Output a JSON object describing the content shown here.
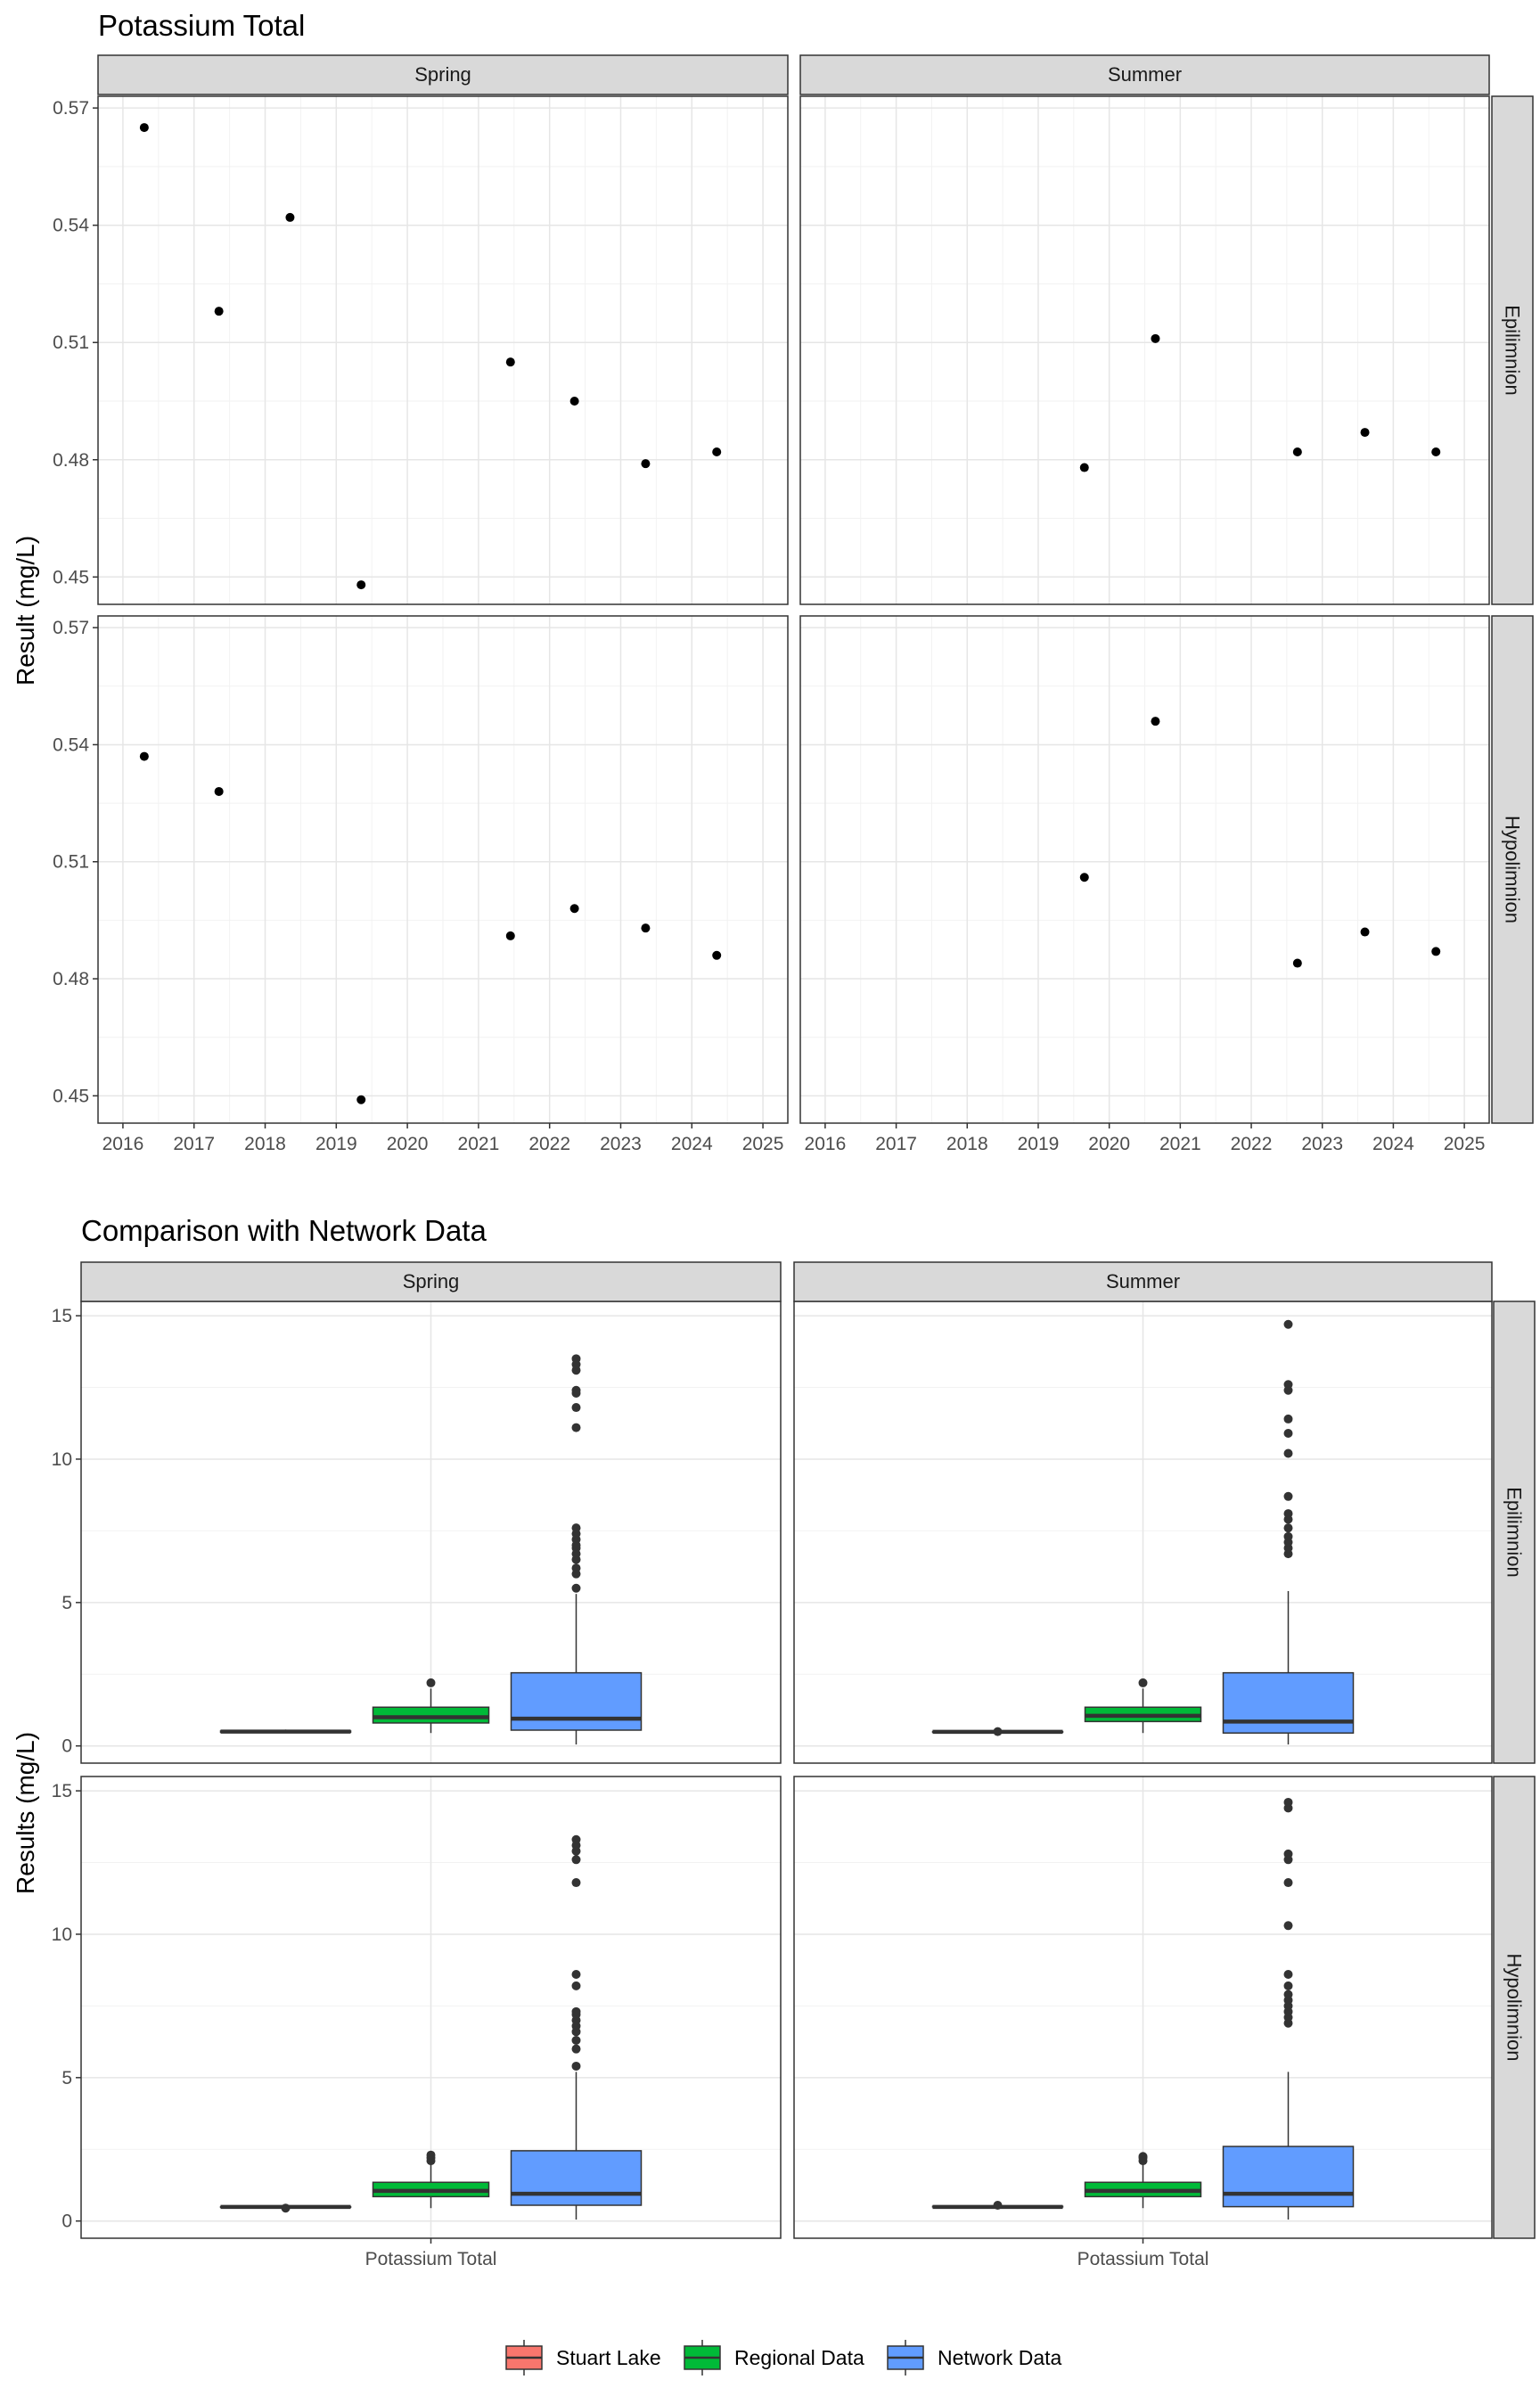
{
  "chart_data": [
    {
      "type": "scatter",
      "title": "Potassium Total",
      "ylabel": "Result (mg/L)",
      "facet_cols": [
        "Spring",
        "Summer"
      ],
      "facet_rows": [
        "Epilimnion",
        "Hypolimnion"
      ],
      "xlim": [
        2015.65,
        2025.35
      ],
      "ylim": [
        0.443,
        0.573
      ],
      "x_ticks": [
        2016,
        2017,
        2018,
        2019,
        2020,
        2021,
        2022,
        2023,
        2024,
        2025
      ],
      "y_ticks": [
        0.45,
        0.48,
        0.51,
        0.54,
        0.57
      ],
      "y_tick_labels": [
        "0.45",
        "0.48",
        "0.51",
        "0.54",
        "0.57"
      ],
      "grid": true,
      "panels": [
        {
          "col": "Spring",
          "row": "Epilimnion",
          "x": [
            2016.3,
            2017.35,
            2018.35,
            2019.35,
            2021.45,
            2022.35,
            2023.35,
            2024.35
          ],
          "y": [
            0.565,
            0.518,
            0.542,
            0.448,
            0.505,
            0.495,
            0.479,
            0.482
          ]
        },
        {
          "col": "Summer",
          "row": "Epilimnion",
          "x": [
            2019.65,
            2020.65,
            2022.65,
            2023.6,
            2024.6
          ],
          "y": [
            0.478,
            0.511,
            0.482,
            0.487,
            0.482
          ]
        },
        {
          "col": "Spring",
          "row": "Hypolimnion",
          "x": [
            2016.3,
            2017.35,
            2019.35,
            2021.45,
            2022.35,
            2023.35,
            2024.35
          ],
          "y": [
            0.537,
            0.528,
            0.449,
            0.491,
            0.498,
            0.493,
            0.486
          ]
        },
        {
          "col": "Summer",
          "row": "Hypolimnion",
          "x": [
            2019.65,
            2020.65,
            2022.65,
            2023.6,
            2024.6
          ],
          "y": [
            0.506,
            0.546,
            0.484,
            0.492,
            0.487
          ]
        }
      ]
    },
    {
      "type": "box",
      "title": "Comparison with Network Data",
      "ylabel": "Results (mg/L)",
      "facet_cols": [
        "Spring",
        "Summer"
      ],
      "facet_rows": [
        "Epilimnion",
        "Hypolimnion"
      ],
      "x_category": "Potassium Total",
      "ylim": [
        -0.6,
        15.5
      ],
      "y_ticks": [
        0,
        5,
        10,
        15
      ],
      "y_tick_labels": [
        "0",
        "5",
        "10",
        "15"
      ],
      "grid": true,
      "groups": [
        {
          "name": "Stuart Lake",
          "color": "#F8766D"
        },
        {
          "name": "Regional Data",
          "color": "#00BA38"
        },
        {
          "name": "Network Data",
          "color": "#619CFF"
        }
      ],
      "legend_position": "bottom",
      "panels": [
        {
          "col": "Spring",
          "row": "Epilimnion",
          "boxes": [
            {
              "group": "Stuart Lake",
              "min": 0.45,
              "q1": 0.48,
              "median": 0.5,
              "q3": 0.52,
              "max": 0.57,
              "outliers": []
            },
            {
              "group": "Regional Data",
              "min": 0.45,
              "q1": 0.8,
              "median": 1.0,
              "q3": 1.35,
              "max": 2.0,
              "outliers": [
                2.2
              ]
            },
            {
              "group": "Network Data",
              "min": 0.05,
              "q1": 0.55,
              "median": 0.95,
              "q3": 2.55,
              "max": 5.3,
              "outliers": [
                5.5,
                6.0,
                6.2,
                6.5,
                6.7,
                6.9,
                7.0,
                7.2,
                7.4,
                7.6,
                11.1,
                11.8,
                12.3,
                12.4,
                13.1,
                13.3,
                13.5
              ]
            }
          ]
        },
        {
          "col": "Summer",
          "row": "Epilimnion",
          "boxes": [
            {
              "group": "Stuart Lake",
              "min": 0.47,
              "q1": 0.48,
              "median": 0.49,
              "q3": 0.5,
              "max": 0.51,
              "outliers": [
                0.5
              ]
            },
            {
              "group": "Regional Data",
              "min": 0.45,
              "q1": 0.85,
              "median": 1.05,
              "q3": 1.35,
              "max": 2.0,
              "outliers": [
                2.2
              ]
            },
            {
              "group": "Network Data",
              "min": 0.05,
              "q1": 0.45,
              "median": 0.85,
              "q3": 2.55,
              "max": 5.4,
              "outliers": [
                6.7,
                6.9,
                7.1,
                7.3,
                7.6,
                7.9,
                8.1,
                8.7,
                10.2,
                10.9,
                11.4,
                12.4,
                12.6,
                14.7
              ]
            }
          ]
        },
        {
          "col": "Spring",
          "row": "Hypolimnion",
          "boxes": [
            {
              "group": "Stuart Lake",
              "min": 0.45,
              "q1": 0.48,
              "median": 0.49,
              "q3": 0.5,
              "max": 0.54,
              "outliers": [
                0.45
              ]
            },
            {
              "group": "Regional Data",
              "min": 0.45,
              "q1": 0.85,
              "median": 1.05,
              "q3": 1.35,
              "max": 2.0,
              "outliers": [
                2.1,
                2.2,
                2.3
              ]
            },
            {
              "group": "Network Data",
              "min": 0.05,
              "q1": 0.55,
              "median": 0.95,
              "q3": 2.45,
              "max": 5.2,
              "outliers": [
                5.4,
                6.0,
                6.3,
                6.6,
                6.8,
                7.0,
                7.2,
                7.3,
                8.2,
                8.6,
                11.8,
                12.6,
                12.9,
                13.1,
                13.3
              ]
            }
          ]
        },
        {
          "col": "Summer",
          "row": "Hypolimnion",
          "boxes": [
            {
              "group": "Stuart Lake",
              "min": 0.48,
              "q1": 0.49,
              "median": 0.49,
              "q3": 0.51,
              "max": 0.55,
              "outliers": [
                0.55
              ]
            },
            {
              "group": "Regional Data",
              "min": 0.45,
              "q1": 0.85,
              "median": 1.05,
              "q3": 1.35,
              "max": 2.0,
              "outliers": [
                2.1,
                2.2,
                2.25
              ]
            },
            {
              "group": "Network Data",
              "min": 0.05,
              "q1": 0.5,
              "median": 0.95,
              "q3": 2.6,
              "max": 5.2,
              "outliers": [
                6.9,
                7.1,
                7.3,
                7.5,
                7.7,
                7.9,
                8.2,
                8.6,
                10.3,
                11.8,
                12.6,
                12.8,
                14.4,
                14.6
              ]
            }
          ]
        }
      ]
    }
  ]
}
